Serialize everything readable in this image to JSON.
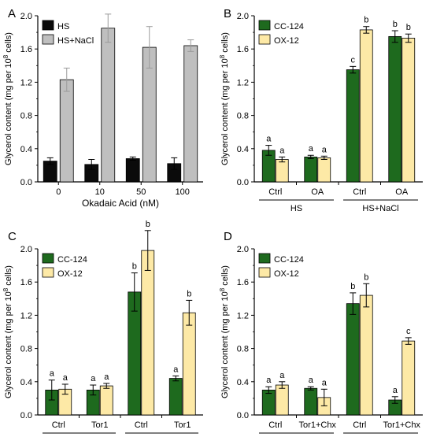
{
  "colors": {
    "HS": "#0b0b0b",
    "HS+NaCl": "#bfbfbf",
    "CC-124": "#1e6a1e",
    "OX-12": "#fde9a6",
    "error_HS_NaCl": "#9a9a9a"
  },
  "chart_data": [
    {
      "panel": "A",
      "type": "bar",
      "ylabel_prefix": "Glycerol content (mg per 10",
      "ylabel_sup": "8",
      "ylabel_suffix": " cells)",
      "xlabel": "Okadaic Acid (nM)",
      "ylim": [
        0,
        2.0
      ],
      "yticks": [
        "0.0",
        "0.4",
        "0.8",
        "1.2",
        "1.6",
        "2.0"
      ],
      "legend_position": "top-left",
      "categories": [
        "0",
        "10",
        "50",
        "100"
      ],
      "series": [
        {
          "name": "HS",
          "values": [
            0.25,
            0.21,
            0.28,
            0.22
          ],
          "errors": [
            0.04,
            0.06,
            0.02,
            0.07
          ]
        },
        {
          "name": "HS+NaCl",
          "values": [
            1.23,
            1.85,
            1.62,
            1.64
          ],
          "errors": [
            0.14,
            0.17,
            0.25,
            0.07
          ]
        }
      ],
      "letters": []
    },
    {
      "panel": "B",
      "type": "bar",
      "ylabel_prefix": "Glycerol content (mg per 10",
      "ylabel_sup": "8",
      "ylabel_suffix": " cells)",
      "xlabel": "",
      "ylim": [
        0,
        2.0
      ],
      "yticks": [
        "0.0",
        "0.4",
        "0.8",
        "1.2",
        "1.6",
        "2.0"
      ],
      "legend_position": "top-left",
      "categories": [
        "Ctrl",
        "OA",
        "Ctrl",
        "OA"
      ],
      "groups": [
        {
          "label": "HS",
          "span": [
            0,
            1
          ]
        },
        {
          "label": "HS+NaCl",
          "span": [
            2,
            3
          ]
        }
      ],
      "series": [
        {
          "name": "CC-124",
          "values": [
            0.38,
            0.3,
            1.35,
            1.75
          ],
          "errors": [
            0.06,
            0.02,
            0.04,
            0.07
          ]
        },
        {
          "name": "OX-12",
          "values": [
            0.27,
            0.29,
            1.83,
            1.73
          ],
          "errors": [
            0.03,
            0.02,
            0.04,
            0.05
          ]
        }
      ],
      "letters": [
        [
          "a",
          "a",
          "c",
          "b"
        ],
        [
          "a",
          "a",
          "b",
          "b"
        ]
      ]
    },
    {
      "panel": "C",
      "type": "bar",
      "ylabel_prefix": "Glycerol content (mg per 10",
      "ylabel_sup": "8",
      "ylabel_suffix": " cells)",
      "xlabel": "",
      "ylim": [
        0,
        2.0
      ],
      "yticks": [
        "0.0",
        "0.4",
        "0.8",
        "1.2",
        "1.6",
        "2.0"
      ],
      "legend_position": "top-left",
      "categories": [
        "Ctrl",
        "Tor1",
        "Ctrl",
        "Tor1"
      ],
      "groups": [
        {
          "label": "HS",
          "span": [
            0,
            1
          ]
        },
        {
          "label": "HS+NaCl",
          "span": [
            2,
            3
          ]
        }
      ],
      "series": [
        {
          "name": "CC-124",
          "values": [
            0.3,
            0.3,
            1.48,
            0.44
          ],
          "errors": [
            0.12,
            0.06,
            0.23,
            0.03
          ]
        },
        {
          "name": "OX-12",
          "values": [
            0.31,
            0.35,
            1.98,
            1.23
          ],
          "errors": [
            0.06,
            0.03,
            0.24,
            0.15
          ]
        }
      ],
      "letters": [
        [
          "a",
          "a",
          "b",
          "a"
        ],
        [
          "a",
          "a",
          "b",
          "b"
        ]
      ]
    },
    {
      "panel": "D",
      "type": "bar",
      "ylabel_prefix": "Glycerol content (mg per 10",
      "ylabel_sup": "8",
      "ylabel_suffix": " cells)",
      "xlabel": "",
      "ylim": [
        0,
        2.0
      ],
      "yticks": [
        "0.0",
        "0.4",
        "0.8",
        "1.2",
        "1.6",
        "2.0"
      ],
      "legend_position": "top-left",
      "categories": [
        "Ctrl",
        "Tor1+Chx",
        "Ctrl",
        "Tor1+Chx"
      ],
      "groups": [
        {
          "label": "HS",
          "span": [
            0,
            1
          ]
        },
        {
          "label": "HS+NaCl",
          "span": [
            2,
            3
          ]
        }
      ],
      "series": [
        {
          "name": "CC-124",
          "values": [
            0.3,
            0.32,
            1.34,
            0.18
          ],
          "errors": [
            0.04,
            0.02,
            0.13,
            0.04
          ]
        },
        {
          "name": "OX-12",
          "values": [
            0.36,
            0.21,
            1.44,
            0.89
          ],
          "errors": [
            0.04,
            0.1,
            0.14,
            0.04
          ]
        }
      ],
      "letters": [
        [
          "a",
          "a",
          "b",
          "a"
        ],
        [
          "a",
          "a",
          "b",
          "c"
        ]
      ]
    }
  ]
}
